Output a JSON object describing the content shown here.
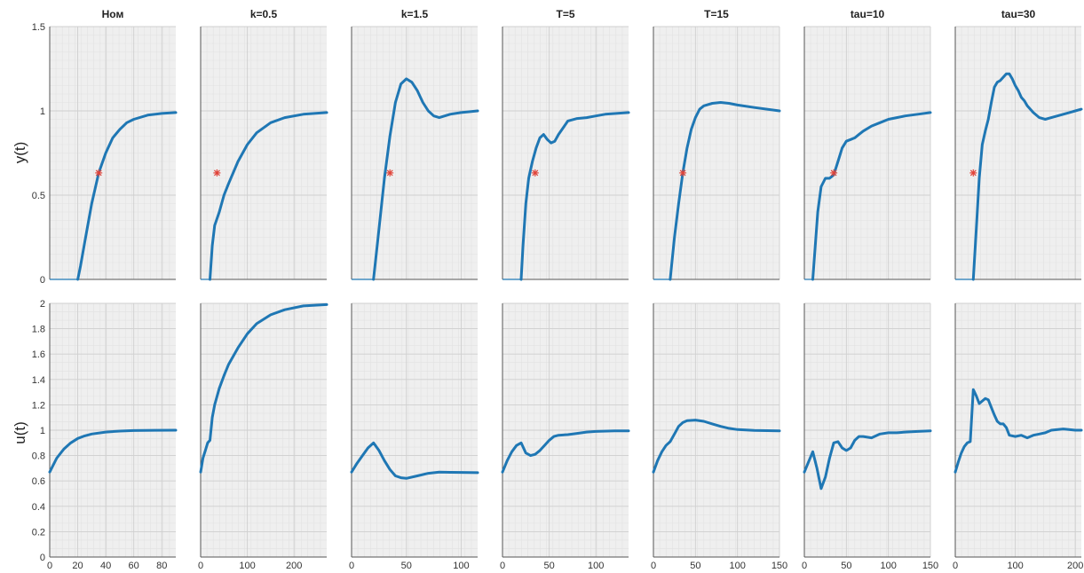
{
  "chart_data": {
    "type": "line",
    "row_ylabels": [
      "y(t)",
      "u(t)"
    ],
    "row_ylims": [
      [
        0,
        1.5
      ],
      [
        0,
        2
      ]
    ],
    "row_yticks": [
      [
        "0",
        "0.5",
        "1",
        "1.5"
      ],
      [
        "0",
        "0.2",
        "0.4",
        "0.6",
        "0.8",
        "1",
        "1.2",
        "1.4",
        "1.6",
        "1.8",
        "2"
      ]
    ],
    "grid": true,
    "line_color": "#1f77b4",
    "marker_color": "#e0443a",
    "panels": [
      {
        "title": "Ном",
        "xlim": [
          0,
          90
        ],
        "xticks": [
          "0",
          "20",
          "40",
          "60",
          "80"
        ],
        "marker": [
          35,
          0.632
        ],
        "y": [
          [
            0,
            0
          ],
          [
            20,
            0
          ],
          [
            22,
            0.08
          ],
          [
            25,
            0.22
          ],
          [
            30,
            0.45
          ],
          [
            35,
            0.632
          ],
          [
            40,
            0.75
          ],
          [
            45,
            0.84
          ],
          [
            50,
            0.89
          ],
          [
            55,
            0.93
          ],
          [
            60,
            0.95
          ],
          [
            70,
            0.975
          ],
          [
            80,
            0.985
          ],
          [
            90,
            0.99
          ]
        ],
        "u": [
          [
            0,
            0.67
          ],
          [
            5,
            0.78
          ],
          [
            10,
            0.85
          ],
          [
            15,
            0.9
          ],
          [
            20,
            0.935
          ],
          [
            25,
            0.955
          ],
          [
            30,
            0.97
          ],
          [
            40,
            0.985
          ],
          [
            50,
            0.993
          ],
          [
            60,
            0.997
          ],
          [
            75,
            0.999
          ],
          [
            90,
            1.0
          ]
        ]
      },
      {
        "title": "k=0.5",
        "xlim": [
          0,
          270
        ],
        "xticks": [
          "0",
          "100",
          "200"
        ],
        "marker": [
          35,
          0.632
        ],
        "y": [
          [
            0,
            0
          ],
          [
            20,
            0
          ],
          [
            25,
            0.2
          ],
          [
            30,
            0.32
          ],
          [
            40,
            0.4
          ],
          [
            50,
            0.5
          ],
          [
            60,
            0.57
          ],
          [
            80,
            0.7
          ],
          [
            100,
            0.8
          ],
          [
            120,
            0.87
          ],
          [
            150,
            0.93
          ],
          [
            180,
            0.96
          ],
          [
            220,
            0.98
          ],
          [
            270,
            0.99
          ]
        ],
        "u": [
          [
            0,
            0.67
          ],
          [
            5,
            0.78
          ],
          [
            10,
            0.84
          ],
          [
            15,
            0.9
          ],
          [
            20,
            0.92
          ],
          [
            25,
            1.1
          ],
          [
            30,
            1.2
          ],
          [
            40,
            1.33
          ],
          [
            50,
            1.43
          ],
          [
            60,
            1.52
          ],
          [
            80,
            1.65
          ],
          [
            100,
            1.76
          ],
          [
            120,
            1.84
          ],
          [
            150,
            1.91
          ],
          [
            180,
            1.95
          ],
          [
            220,
            1.98
          ],
          [
            270,
            1.99
          ]
        ]
      },
      {
        "title": "k=1.5",
        "xlim": [
          0,
          115
        ],
        "xticks": [
          "0",
          "50",
          "100"
        ],
        "marker": [
          35,
          0.632
        ],
        "y": [
          [
            0,
            0
          ],
          [
            20,
            0
          ],
          [
            22,
            0.12
          ],
          [
            25,
            0.3
          ],
          [
            30,
            0.6
          ],
          [
            35,
            0.85
          ],
          [
            40,
            1.05
          ],
          [
            45,
            1.16
          ],
          [
            50,
            1.19
          ],
          [
            55,
            1.17
          ],
          [
            60,
            1.12
          ],
          [
            65,
            1.05
          ],
          [
            70,
            1.0
          ],
          [
            75,
            0.97
          ],
          [
            80,
            0.96
          ],
          [
            90,
            0.98
          ],
          [
            100,
            0.99
          ],
          [
            115,
            1.0
          ]
        ],
        "u": [
          [
            0,
            0.67
          ],
          [
            5,
            0.74
          ],
          [
            10,
            0.8
          ],
          [
            15,
            0.86
          ],
          [
            20,
            0.9
          ],
          [
            25,
            0.84
          ],
          [
            30,
            0.76
          ],
          [
            35,
            0.69
          ],
          [
            40,
            0.64
          ],
          [
            45,
            0.625
          ],
          [
            50,
            0.62
          ],
          [
            60,
            0.64
          ],
          [
            70,
            0.66
          ],
          [
            80,
            0.67
          ],
          [
            90,
            0.668
          ],
          [
            100,
            0.667
          ],
          [
            115,
            0.665
          ]
        ]
      },
      {
        "title": "T=5",
        "xlim": [
          0,
          135
        ],
        "xticks": [
          "0",
          "50",
          "100"
        ],
        "marker": [
          35,
          0.632
        ],
        "y": [
          [
            0,
            0
          ],
          [
            20,
            0
          ],
          [
            22,
            0.2
          ],
          [
            25,
            0.45
          ],
          [
            28,
            0.6
          ],
          [
            32,
            0.7
          ],
          [
            36,
            0.78
          ],
          [
            40,
            0.84
          ],
          [
            44,
            0.86
          ],
          [
            48,
            0.83
          ],
          [
            52,
            0.81
          ],
          [
            56,
            0.82
          ],
          [
            60,
            0.86
          ],
          [
            65,
            0.9
          ],
          [
            70,
            0.94
          ],
          [
            80,
            0.955
          ],
          [
            90,
            0.96
          ],
          [
            100,
            0.97
          ],
          [
            110,
            0.98
          ],
          [
            135,
            0.99
          ]
        ],
        "u": [
          [
            0,
            0.67
          ],
          [
            5,
            0.76
          ],
          [
            10,
            0.83
          ],
          [
            15,
            0.88
          ],
          [
            20,
            0.9
          ],
          [
            25,
            0.82
          ],
          [
            30,
            0.8
          ],
          [
            35,
            0.81
          ],
          [
            40,
            0.84
          ],
          [
            45,
            0.88
          ],
          [
            50,
            0.92
          ],
          [
            55,
            0.95
          ],
          [
            60,
            0.96
          ],
          [
            70,
            0.965
          ],
          [
            80,
            0.975
          ],
          [
            90,
            0.985
          ],
          [
            100,
            0.99
          ],
          [
            120,
            0.995
          ],
          [
            135,
            0.995
          ]
        ]
      },
      {
        "title": "T=15",
        "xlim": [
          0,
          150
        ],
        "xticks": [
          "0",
          "50",
          "100",
          "150"
        ],
        "marker": [
          35,
          0.632
        ],
        "y": [
          [
            0,
            0
          ],
          [
            20,
            0
          ],
          [
            25,
            0.25
          ],
          [
            30,
            0.45
          ],
          [
            35,
            0.632
          ],
          [
            40,
            0.78
          ],
          [
            45,
            0.89
          ],
          [
            50,
            0.96
          ],
          [
            55,
            1.01
          ],
          [
            60,
            1.03
          ],
          [
            70,
            1.045
          ],
          [
            80,
            1.05
          ],
          [
            90,
            1.045
          ],
          [
            100,
            1.035
          ],
          [
            120,
            1.02
          ],
          [
            150,
            1.0
          ]
        ],
        "u": [
          [
            0,
            0.67
          ],
          [
            5,
            0.76
          ],
          [
            10,
            0.83
          ],
          [
            15,
            0.88
          ],
          [
            20,
            0.91
          ],
          [
            25,
            0.97
          ],
          [
            30,
            1.03
          ],
          [
            35,
            1.06
          ],
          [
            40,
            1.075
          ],
          [
            50,
            1.08
          ],
          [
            60,
            1.07
          ],
          [
            70,
            1.05
          ],
          [
            80,
            1.03
          ],
          [
            90,
            1.015
          ],
          [
            100,
            1.005
          ],
          [
            120,
            0.998
          ],
          [
            150,
            0.995
          ]
        ]
      },
      {
        "title": "tau=10",
        "xlim": [
          0,
          150
        ],
        "xticks": [
          "0",
          "50",
          "100",
          "150"
        ],
        "marker": [
          35,
          0.632
        ],
        "y": [
          [
            0,
            0
          ],
          [
            10,
            0
          ],
          [
            13,
            0.2
          ],
          [
            16,
            0.4
          ],
          [
            20,
            0.55
          ],
          [
            25,
            0.6
          ],
          [
            30,
            0.6
          ],
          [
            35,
            0.62
          ],
          [
            40,
            0.7
          ],
          [
            45,
            0.78
          ],
          [
            50,
            0.82
          ],
          [
            55,
            0.83
          ],
          [
            60,
            0.84
          ],
          [
            65,
            0.86
          ],
          [
            70,
            0.88
          ],
          [
            80,
            0.91
          ],
          [
            90,
            0.93
          ],
          [
            100,
            0.95
          ],
          [
            110,
            0.96
          ],
          [
            120,
            0.97
          ],
          [
            135,
            0.98
          ],
          [
            150,
            0.99
          ]
        ],
        "u": [
          [
            0,
            0.67
          ],
          [
            5,
            0.75
          ],
          [
            10,
            0.83
          ],
          [
            15,
            0.7
          ],
          [
            20,
            0.54
          ],
          [
            25,
            0.63
          ],
          [
            30,
            0.78
          ],
          [
            35,
            0.9
          ],
          [
            40,
            0.91
          ],
          [
            45,
            0.86
          ],
          [
            50,
            0.84
          ],
          [
            55,
            0.86
          ],
          [
            60,
            0.92
          ],
          [
            65,
            0.95
          ],
          [
            70,
            0.95
          ],
          [
            80,
            0.94
          ],
          [
            90,
            0.97
          ],
          [
            100,
            0.98
          ],
          [
            110,
            0.98
          ],
          [
            120,
            0.985
          ],
          [
            135,
            0.99
          ],
          [
            150,
            0.995
          ]
        ]
      },
      {
        "title": "tau=30",
        "xlim": [
          0,
          210
        ],
        "xticks": [
          "0",
          "100",
          "200"
        ],
        "marker": [
          30,
          0.632
        ],
        "y": [
          [
            0,
            0
          ],
          [
            30,
            0
          ],
          [
            35,
            0.3
          ],
          [
            40,
            0.6
          ],
          [
            45,
            0.8
          ],
          [
            50,
            0.88
          ],
          [
            55,
            0.95
          ],
          [
            60,
            1.05
          ],
          [
            65,
            1.14
          ],
          [
            70,
            1.17
          ],
          [
            75,
            1.18
          ],
          [
            80,
            1.2
          ],
          [
            85,
            1.22
          ],
          [
            90,
            1.22
          ],
          [
            95,
            1.19
          ],
          [
            100,
            1.15
          ],
          [
            105,
            1.12
          ],
          [
            110,
            1.08
          ],
          [
            115,
            1.06
          ],
          [
            120,
            1.03
          ],
          [
            130,
            0.99
          ],
          [
            140,
            0.96
          ],
          [
            150,
            0.95
          ],
          [
            160,
            0.96
          ],
          [
            170,
            0.97
          ],
          [
            180,
            0.98
          ],
          [
            190,
            0.99
          ],
          [
            200,
            1.0
          ],
          [
            210,
            1.01
          ]
        ],
        "u": [
          [
            0,
            0.67
          ],
          [
            5,
            0.75
          ],
          [
            10,
            0.82
          ],
          [
            15,
            0.87
          ],
          [
            20,
            0.9
          ],
          [
            25,
            0.91
          ],
          [
            30,
            1.32
          ],
          [
            35,
            1.27
          ],
          [
            40,
            1.21
          ],
          [
            45,
            1.23
          ],
          [
            50,
            1.25
          ],
          [
            55,
            1.24
          ],
          [
            60,
            1.18
          ],
          [
            65,
            1.12
          ],
          [
            70,
            1.07
          ],
          [
            75,
            1.05
          ],
          [
            80,
            1.05
          ],
          [
            85,
            1.02
          ],
          [
            90,
            0.96
          ],
          [
            100,
            0.95
          ],
          [
            110,
            0.96
          ],
          [
            120,
            0.94
          ],
          [
            130,
            0.96
          ],
          [
            140,
            0.97
          ],
          [
            150,
            0.98
          ],
          [
            160,
            1.0
          ],
          [
            180,
            1.01
          ],
          [
            200,
            1.0
          ],
          [
            210,
            1.0
          ]
        ]
      }
    ]
  }
}
